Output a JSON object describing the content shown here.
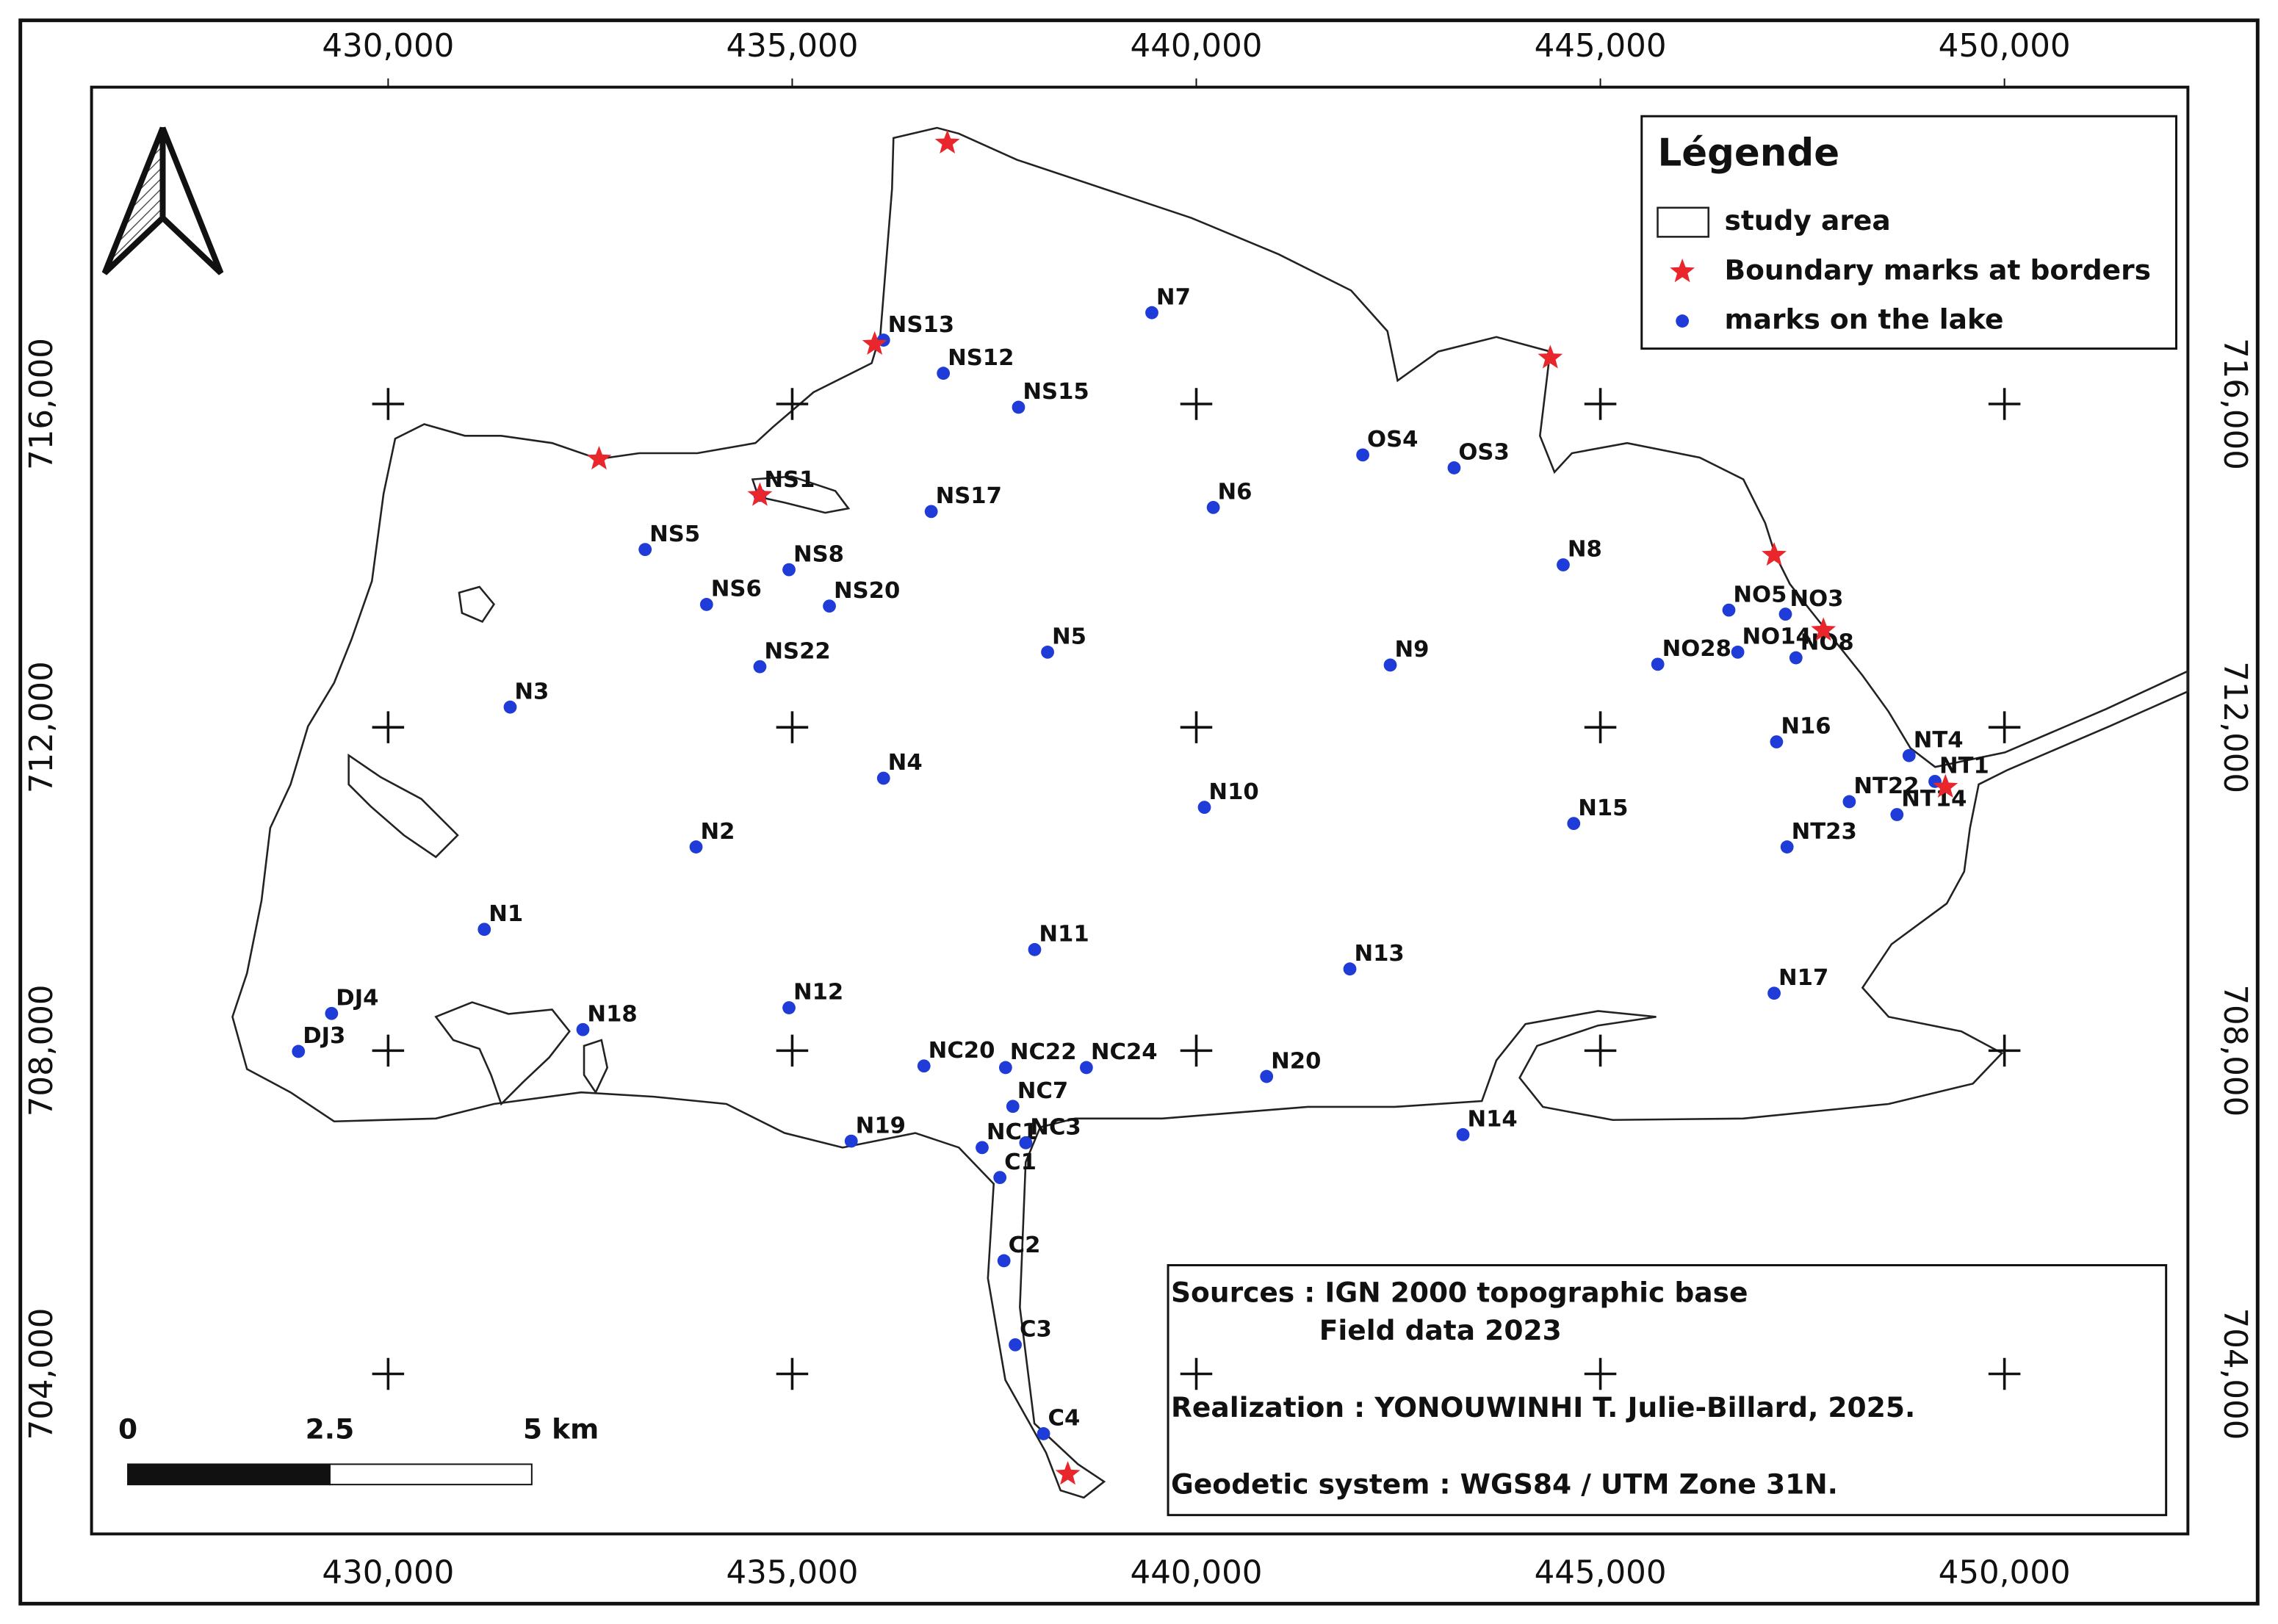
{
  "map": {
    "xlim": [
      426330,
      452270
    ],
    "ylim": [
      702020,
      719920
    ],
    "xticks": [
      {
        "value": 430000,
        "label": "430,000"
      },
      {
        "value": 435000,
        "label": "435,000"
      },
      {
        "value": 440000,
        "label": "440,000"
      },
      {
        "value": 445000,
        "label": "445,000"
      },
      {
        "value": 450000,
        "label": "450,000"
      }
    ],
    "yticks": [
      {
        "value": 704000,
        "label": "704,000"
      },
      {
        "value": 708000,
        "label": "708,000"
      },
      {
        "value": 712000,
        "label": "712,000"
      },
      {
        "value": 716000,
        "label": "716,000"
      }
    ],
    "legend": {
      "title": "Légende",
      "items": [
        "study area",
        "Boundary marks at borders",
        "marks on the lake"
      ]
    },
    "boundary_marks": {
      "color": "#e8262b",
      "x": [
        436920,
        436020,
        444380,
        432610,
        434600,
        447150,
        447760,
        449270,
        438410
      ],
      "y": [
        719230,
        716740,
        716570,
        715320,
        714870,
        714130,
        713200,
        711260,
        702760
      ]
    },
    "lake_marks": {
      "color": "#1f3bd8",
      "labels": [
        "N7",
        "NS13",
        "NS12",
        "NS15",
        "OS4",
        "OS3",
        "N6",
        "NS17",
        "NS5",
        "N8",
        "NS8",
        "NS6",
        "NS20",
        "NO5",
        "NO3",
        "NO14",
        "NO8",
        "N5",
        "NO28",
        "N9",
        "NS22",
        "N3",
        "N16",
        "NT4",
        "NT1",
        "N4",
        "N10",
        "NT22",
        "NT14",
        "N15",
        "N2",
        "NT23",
        "N1",
        "N11",
        "N13",
        "N17",
        "N12",
        "DJ4",
        "N18",
        "DJ3",
        "NC20",
        "NC22",
        "NC24",
        "N20",
        "NC7",
        "N14",
        "N19",
        "NC1",
        "NC3",
        "C1",
        "C2",
        "C3",
        "C4",
        "NS1"
      ],
      "x": [
        439450,
        436130,
        436870,
        437800,
        442060,
        443190,
        440210,
        436720,
        433180,
        444540,
        434960,
        433940,
        435460,
        446590,
        447290,
        446700,
        447420,
        438160,
        445710,
        442400,
        434600,
        431510,
        447180,
        448820,
        449140,
        436130,
        440100,
        448080,
        448670,
        444670,
        433810,
        447310,
        431190,
        438000,
        441900,
        447150,
        434960,
        429300,
        432410,
        428890,
        436630,
        437640,
        438640,
        440870,
        437730,
        443300,
        435730,
        437350,
        437890,
        437570,
        437620,
        437760,
        438110,
        434600
      ],
      "y": [
        717130,
        716790,
        716380,
        715960,
        715370,
        715210,
        714720,
        714670,
        714200,
        714010,
        713950,
        713520,
        713500,
        713450,
        713400,
        712930,
        712860,
        712930,
        712780,
        712770,
        712750,
        712250,
        711820,
        711650,
        711330,
        711370,
        711010,
        711080,
        710920,
        710810,
        710520,
        710520,
        709500,
        709250,
        709010,
        708710,
        708530,
        708460,
        708260,
        707990,
        707810,
        707790,
        707790,
        707680,
        707310,
        706960,
        706880,
        706800,
        706860,
        706430,
        705400,
        704360,
        703260,
        714870
      ]
    },
    "notes": [
      "Sources : IGN 2000 topographic base",
      "Field data 2023",
      "Realization : YONOUWINHI T. Julie-Billard, 2025.",
      "Geodetic system : WGS84 / UTM Zone 31N."
    ],
    "scale_bar": [
      "0",
      "2.5",
      "5 km"
    ]
  }
}
